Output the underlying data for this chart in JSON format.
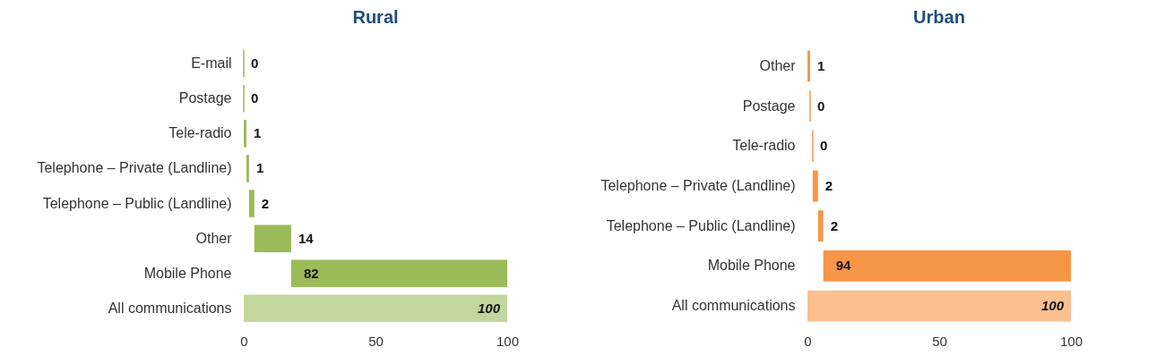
{
  "chart_data": [
    {
      "type": "bar",
      "title": "Rural",
      "orientation": "horizontal",
      "categories": [
        "E-mail",
        "Postage",
        "Tele-radio",
        "Telephone – Private (Landline)",
        "Telephone – Public (Landline)",
        "Other",
        "Mobile Phone",
        "All communications"
      ],
      "values": [
        0,
        0,
        1,
        1,
        2,
        14,
        82,
        100
      ],
      "base": [
        0,
        0,
        0,
        1,
        2,
        4,
        18,
        0
      ],
      "colors": [
        "#9bbb59",
        "#9bbb59",
        "#9bbb59",
        "#9bbb59",
        "#9bbb59",
        "#9bbb59",
        "#9bbb59",
        "#c3d69b"
      ],
      "xlim": [
        0,
        100
      ],
      "xticks": [
        0,
        50,
        100
      ],
      "data_labels": true,
      "grid": false
    },
    {
      "type": "bar",
      "title": "Urban",
      "orientation": "horizontal",
      "categories": [
        "Other",
        "Postage",
        "Tele-radio",
        "Telephone – Private (Landline)",
        "Telephone – Public (Landline)",
        "Mobile Phone",
        "All communications"
      ],
      "values": [
        1,
        0,
        0,
        2,
        2,
        94,
        100
      ],
      "base": [
        0,
        1,
        2,
        2,
        4,
        6,
        0
      ],
      "colors": [
        "#f79646",
        "#f79646",
        "#f79646",
        "#f79646",
        "#f79646",
        "#f79646",
        "#fac090"
      ],
      "xlim": [
        0,
        100
      ],
      "xticks": [
        0,
        50,
        100
      ],
      "data_labels": true,
      "grid": false
    }
  ]
}
